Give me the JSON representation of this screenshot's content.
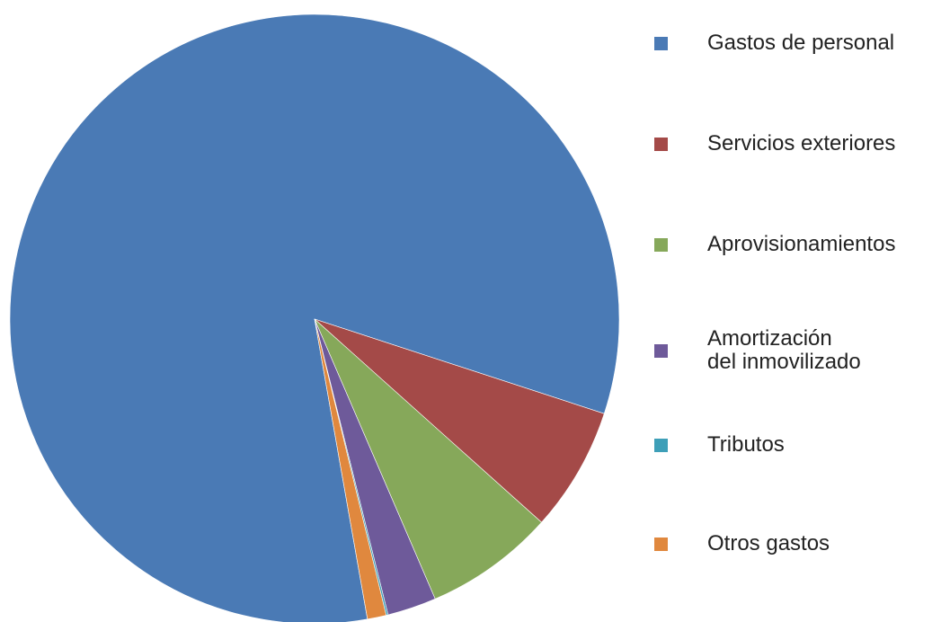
{
  "chart_data": {
    "type": "pie",
    "categories": [
      "Gastos de personal",
      "Servicios exteriores",
      "Aprovisionamientos",
      "Amortización\ndel inmovilizado",
      "Tributos",
      "Otros gastos"
    ],
    "values": [
      82.8,
      6.6,
      6.9,
      2.6,
      0.1,
      1.0
    ],
    "colors": [
      "#4a7ab5",
      "#a44a48",
      "#86a85a",
      "#6e5a9a",
      "#3e9fb8",
      "#e0883e"
    ],
    "legend": "right"
  }
}
